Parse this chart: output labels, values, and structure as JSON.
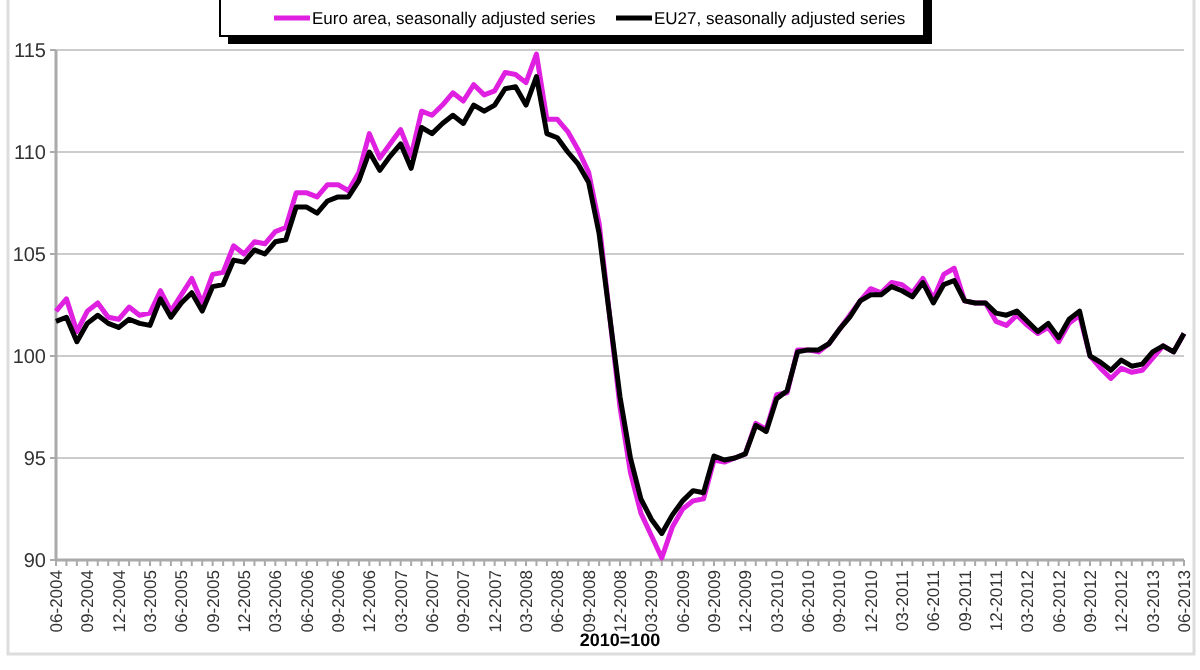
{
  "chart_data": {
    "type": "line",
    "categories": [
      "06-2004",
      null,
      null,
      "09-2004",
      null,
      null,
      "12-2004",
      null,
      null,
      "03-2005",
      null,
      null,
      "06-2005",
      null,
      null,
      "09-2005",
      null,
      null,
      "12-2005",
      null,
      null,
      "03-2006",
      null,
      null,
      "06-2006",
      null,
      null,
      "09-2006",
      null,
      null,
      "12-2006",
      null,
      null,
      "03-2007",
      null,
      null,
      "06-2007",
      null,
      null,
      "09-2007",
      null,
      null,
      "12-2007",
      null,
      null,
      "03-2008",
      null,
      null,
      "06-2008",
      null,
      null,
      "09-2008",
      null,
      null,
      "12-2008",
      null,
      null,
      "03-2009",
      null,
      null,
      "06-2009",
      null,
      null,
      "09-2009",
      null,
      null,
      "12-2009",
      null,
      null,
      "03-2010",
      null,
      null,
      "06-2010",
      null,
      null,
      "09-2010",
      null,
      null,
      "12-2010",
      null,
      null,
      "03-2011",
      null,
      null,
      "06-2011",
      null,
      null,
      "09-2011",
      null,
      null,
      "12-2011",
      null,
      null,
      "03-2012",
      null,
      null,
      "06-2012",
      null,
      null,
      "09-2012",
      null,
      null,
      "12-2012",
      null,
      null,
      "03-2013",
      null,
      null,
      "06-2013"
    ],
    "series": [
      {
        "name": "Euro area, seasonally adjusted series",
        "color": "#e020e0",
        "values": [
          102.2,
          102.8,
          101.2,
          102.2,
          102.6,
          101.9,
          101.8,
          102.4,
          102.0,
          102.1,
          103.2,
          102.2,
          103.0,
          103.8,
          102.6,
          104.0,
          104.1,
          105.4,
          105.0,
          105.6,
          105.5,
          106.1,
          106.3,
          108.0,
          108.0,
          107.8,
          108.4,
          108.4,
          108.1,
          109.0,
          110.9,
          109.7,
          110.4,
          111.1,
          109.8,
          112.0,
          111.8,
          112.3,
          112.9,
          112.5,
          113.3,
          112.8,
          113.0,
          113.9,
          113.8,
          113.4,
          114.8,
          111.6,
          111.6,
          111.0,
          110.1,
          109.0,
          106.5,
          102.0,
          97.5,
          94.3,
          92.3,
          91.2,
          90.1,
          91.6,
          92.5,
          92.9,
          93.0,
          94.9,
          94.8,
          95.0,
          95.2,
          96.7,
          96.4,
          98.1,
          98.2,
          100.3,
          100.3,
          100.2,
          100.6,
          101.3,
          102.0,
          102.7,
          103.3,
          103.1,
          103.6,
          103.5,
          103.1,
          103.8,
          102.8,
          104.0,
          104.3,
          102.7,
          102.6,
          102.6,
          101.7,
          101.5,
          102.0,
          101.5,
          101.1,
          101.4,
          100.7,
          101.6,
          102.0,
          100.0,
          99.4,
          98.9,
          99.4,
          99.2,
          99.3,
          99.9,
          100.5,
          100.2,
          101.1
        ]
      },
      {
        "name": "EU27, seasonally adjusted series",
        "color": "#000000",
        "values": [
          101.7,
          101.9,
          100.7,
          101.6,
          102.0,
          101.6,
          101.4,
          101.8,
          101.6,
          101.5,
          102.8,
          101.9,
          102.6,
          103.1,
          102.2,
          103.4,
          103.5,
          104.7,
          104.6,
          105.2,
          105.0,
          105.6,
          105.7,
          107.3,
          107.3,
          107.0,
          107.6,
          107.8,
          107.8,
          108.6,
          110.0,
          109.1,
          109.8,
          110.4,
          109.2,
          111.2,
          110.9,
          111.4,
          111.8,
          111.4,
          112.3,
          112.0,
          112.3,
          113.1,
          113.2,
          112.3,
          113.7,
          110.9,
          110.7,
          110.0,
          109.4,
          108.5,
          106.0,
          102.0,
          98.0,
          95.0,
          93.0,
          92.0,
          91.3,
          92.2,
          92.9,
          93.4,
          93.3,
          95.1,
          94.9,
          95.0,
          95.2,
          96.6,
          96.3,
          97.9,
          98.3,
          100.2,
          100.3,
          100.3,
          100.6,
          101.3,
          101.9,
          102.7,
          103.0,
          103.0,
          103.4,
          103.2,
          102.9,
          103.6,
          102.6,
          103.5,
          103.7,
          102.7,
          102.6,
          102.6,
          102.1,
          102.0,
          102.2,
          101.7,
          101.2,
          101.6,
          100.9,
          101.8,
          102.2,
          100.0,
          99.7,
          99.3,
          99.8,
          99.5,
          99.6,
          100.2,
          100.5,
          100.2,
          101.1
        ]
      }
    ],
    "ylim": [
      90,
      115
    ],
    "yticks": [
      90,
      95,
      100,
      105,
      110,
      115
    ],
    "grid": "y",
    "legend": "top",
    "line_style": "solid",
    "marker": "none",
    "annotations": [
      "2010=100"
    ]
  }
}
